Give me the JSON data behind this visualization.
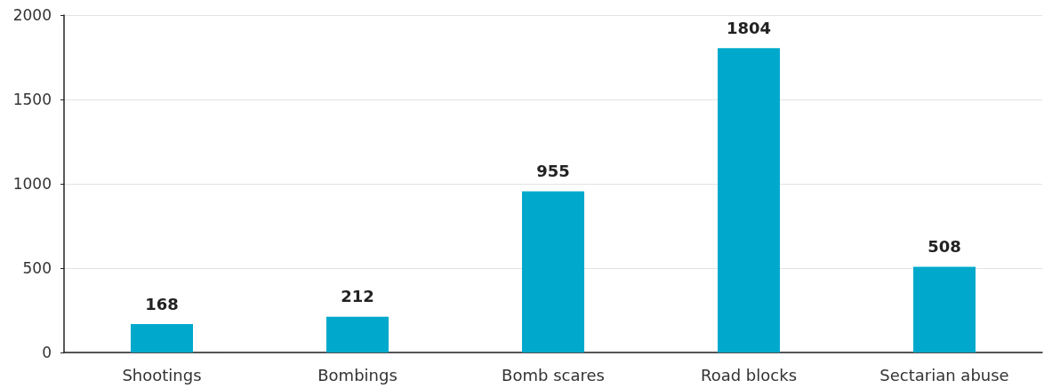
{
  "chart_data": {
    "type": "bar",
    "categories": [
      "Shootings",
      "Bombings",
      "Bomb scares",
      "Road blocks",
      "Sectarian abuse"
    ],
    "values": [
      168,
      212,
      955,
      1804,
      508
    ],
    "color": "#00a9cc",
    "ylim": [
      0,
      2000
    ],
    "yticks": [
      0,
      500,
      1000,
      1500,
      2000
    ],
    "grid": "y",
    "data_labels": true
  }
}
